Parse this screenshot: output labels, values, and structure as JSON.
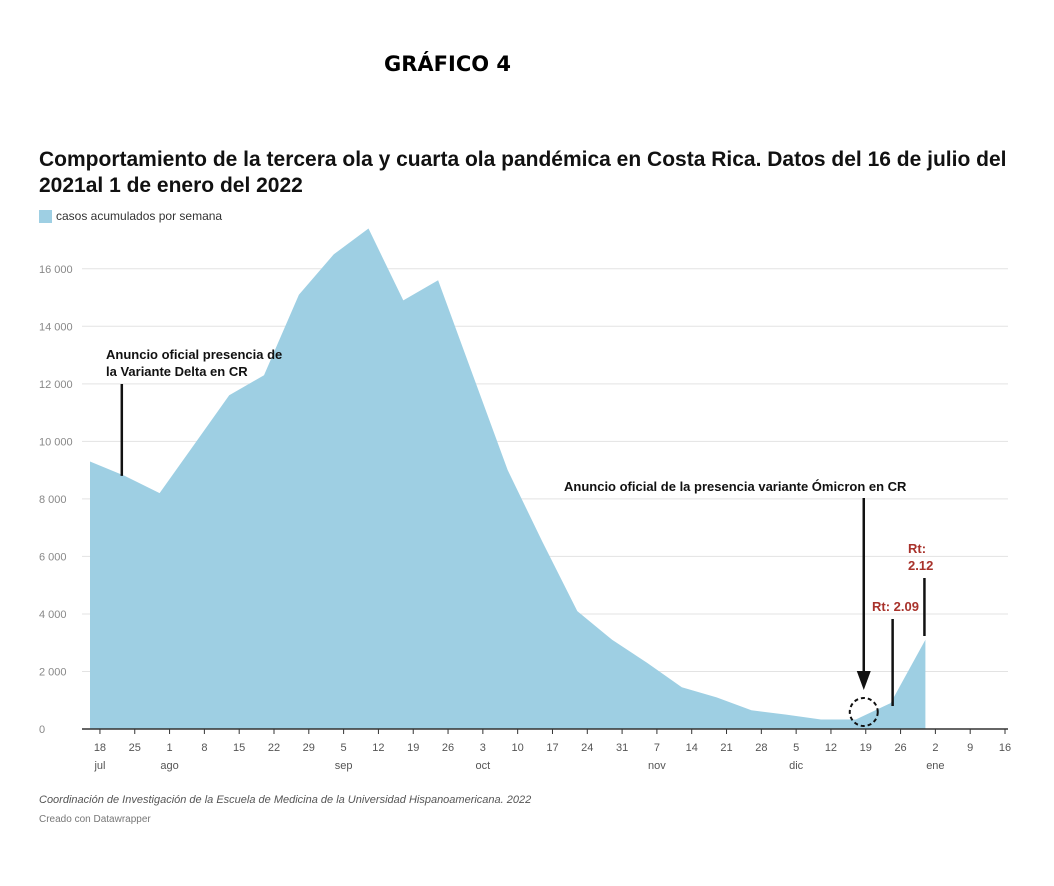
{
  "header": {
    "label": "GRÁFICO 4"
  },
  "footer": {
    "source": "Coordinación de Investigación de la Escuela de Medicina de la Universidad Hispanoamericana. 2022",
    "credit": "Creado con Datawrapper"
  },
  "colors": {
    "area": "#9ecfe3",
    "grid": "#e3e3e3",
    "axis": "#333333",
    "annotation_red": "#a8322b",
    "annotation_black": "#111111"
  },
  "chart_data": {
    "type": "area",
    "title": "Comportamiento de la tercera ola y cuarta ola pandémica en Costa Rica. Datos del 16 de julio del 2021al 1 de enero del 2022",
    "legend": [
      {
        "label": "casos acumulados por semana",
        "color": "#9ecfe3"
      }
    ],
    "legend_position": "top-left",
    "grid": true,
    "ylim": [
      0,
      17000
    ],
    "y_ticks": [
      0,
      2000,
      4000,
      6000,
      8000,
      10000,
      12000,
      14000,
      16000
    ],
    "y_tick_labels": [
      "0",
      "2 000",
      "4 000",
      "6 000",
      "8 000",
      "10 000",
      "12 000",
      "14 000",
      "16 000"
    ],
    "xlim": [
      "2021-07-16",
      "2022-01-16"
    ],
    "x_ticks": [
      {
        "date": "2021-07-18",
        "label": "18",
        "month": "jul"
      },
      {
        "date": "2021-07-25",
        "label": "25",
        "month": ""
      },
      {
        "date": "2021-08-01",
        "label": "1",
        "month": "ago"
      },
      {
        "date": "2021-08-08",
        "label": "8",
        "month": ""
      },
      {
        "date": "2021-08-15",
        "label": "15",
        "month": ""
      },
      {
        "date": "2021-08-22",
        "label": "22",
        "month": ""
      },
      {
        "date": "2021-08-29",
        "label": "29",
        "month": ""
      },
      {
        "date": "2021-09-05",
        "label": "5",
        "month": "sep"
      },
      {
        "date": "2021-09-12",
        "label": "12",
        "month": ""
      },
      {
        "date": "2021-09-19",
        "label": "19",
        "month": ""
      },
      {
        "date": "2021-09-26",
        "label": "26",
        "month": ""
      },
      {
        "date": "2021-10-03",
        "label": "3",
        "month": "oct"
      },
      {
        "date": "2021-10-10",
        "label": "10",
        "month": ""
      },
      {
        "date": "2021-10-17",
        "label": "17",
        "month": ""
      },
      {
        "date": "2021-10-24",
        "label": "24",
        "month": ""
      },
      {
        "date": "2021-10-31",
        "label": "31",
        "month": ""
      },
      {
        "date": "2021-11-07",
        "label": "7",
        "month": "nov"
      },
      {
        "date": "2021-11-14",
        "label": "14",
        "month": ""
      },
      {
        "date": "2021-11-21",
        "label": "21",
        "month": ""
      },
      {
        "date": "2021-11-28",
        "label": "28",
        "month": ""
      },
      {
        "date": "2021-12-05",
        "label": "5",
        "month": "dic"
      },
      {
        "date": "2021-12-12",
        "label": "12",
        "month": ""
      },
      {
        "date": "2021-12-19",
        "label": "19",
        "month": ""
      },
      {
        "date": "2021-12-26",
        "label": "26",
        "month": ""
      },
      {
        "date": "2022-01-02",
        "label": "2",
        "month": "ene"
      },
      {
        "date": "2022-01-09",
        "label": "9",
        "month": ""
      },
      {
        "date": "2022-01-16",
        "label": "16",
        "month": ""
      }
    ],
    "series": [
      {
        "name": "casos acumulados por semana",
        "x": [
          "2021-07-16",
          "2021-07-23",
          "2021-07-30",
          "2021-08-06",
          "2021-08-13",
          "2021-08-20",
          "2021-08-27",
          "2021-09-03",
          "2021-09-10",
          "2021-09-17",
          "2021-09-24",
          "2021-10-01",
          "2021-10-08",
          "2021-10-15",
          "2021-10-22",
          "2021-10-29",
          "2021-11-05",
          "2021-11-12",
          "2021-11-19",
          "2021-11-26",
          "2021-12-03",
          "2021-12-10",
          "2021-12-17",
          "2021-12-24",
          "2021-12-31"
        ],
        "y": [
          9300,
          8800,
          8200,
          9900,
          11600,
          12300,
          15100,
          16500,
          17400,
          14900,
          15600,
          12300,
          9000,
          6500,
          4100,
          3100,
          2300,
          1450,
          1100,
          650,
          500,
          330,
          330,
          900,
          3100
        ]
      }
    ],
    "annotations": [
      {
        "text_lines": [
          "Anuncio oficial presencia de",
          "la Variante Delta en CR"
        ],
        "x": "2021-07-23",
        "y": 8800,
        "color": "#111111",
        "style": "line"
      },
      {
        "text_lines": [
          "Anuncio oficial de la presencia variante Ómicron en CR"
        ],
        "x": "2021-12-19",
        "y": 330,
        "color": "#111111",
        "style": "arrow-circle"
      },
      {
        "text_lines": [
          "Rt: 2.09"
        ],
        "x": "2021-12-24",
        "y": 900,
        "color": "#a8322b",
        "style": "line"
      },
      {
        "text_lines": [
          "Rt:",
          "2.12"
        ],
        "x": "2021-12-31",
        "y": 3100,
        "color": "#a8322b",
        "style": "line"
      }
    ]
  }
}
